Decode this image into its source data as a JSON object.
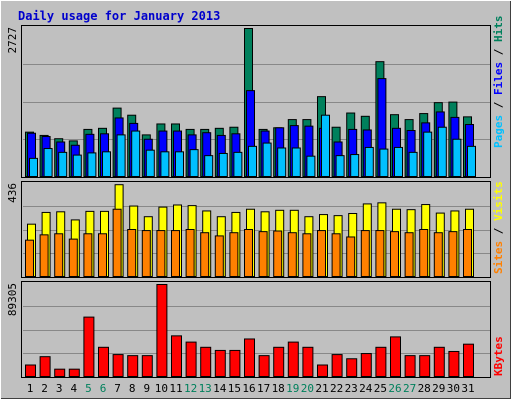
{
  "colors": {
    "background": "#c0c0c0",
    "title": "#0000cc",
    "hits": "#00805c",
    "files": "#0000ff",
    "pages": "#00c0ff",
    "visits": "#ffff00",
    "sites": "#ff8000",
    "kbytes": "#ff0000",
    "grid": "#888888"
  },
  "chart_data": [
    {
      "type": "bar",
      "title": "Daily usage for January 2013",
      "ylabel_max": "2727",
      "ylim": [
        0,
        2727
      ],
      "categories": [
        "1",
        "2",
        "3",
        "4",
        "5",
        "6",
        "7",
        "8",
        "9",
        "10",
        "11",
        "12",
        "13",
        "14",
        "15",
        "16",
        "17",
        "18",
        "19",
        "20",
        "21",
        "22",
        "23",
        "24",
        "25",
        "26",
        "27",
        "28",
        "29",
        "30",
        "31"
      ],
      "weekend_days": [
        "5",
        "6",
        "12",
        "13",
        "19",
        "20",
        "26",
        "27"
      ],
      "legend": [
        "Pages",
        "Files",
        "Hits"
      ],
      "series": [
        {
          "name": "Hits",
          "values": [
            830,
            770,
            710,
            670,
            880,
            900,
            1270,
            1140,
            780,
            980,
            980,
            880,
            880,
            900,
            920,
            2727,
            880,
            910,
            1060,
            1060,
            1480,
            920,
            1180,
            1120,
            2120,
            1150,
            1060,
            1170,
            1370,
            1380,
            1110
          ]
        },
        {
          "name": "Files",
          "values": [
            810,
            750,
            650,
            590,
            790,
            800,
            1090,
            990,
            700,
            850,
            850,
            780,
            820,
            770,
            800,
            1590,
            850,
            910,
            950,
            940,
            900,
            650,
            880,
            870,
            1810,
            900,
            860,
            1000,
            1200,
            1100,
            970
          ]
        },
        {
          "name": "Pages",
          "values": [
            350,
            530,
            460,
            410,
            450,
            470,
            780,
            850,
            500,
            470,
            470,
            510,
            400,
            440,
            460,
            570,
            630,
            540,
            540,
            390,
            1140,
            400,
            420,
            550,
            520,
            550,
            460,
            830,
            920,
            700,
            570
          ]
        }
      ]
    },
    {
      "type": "bar",
      "ylabel_max": "436",
      "ylim": [
        0,
        436
      ],
      "categories": [
        "1",
        "2",
        "3",
        "4",
        "5",
        "6",
        "7",
        "8",
        "9",
        "10",
        "11",
        "12",
        "13",
        "14",
        "15",
        "16",
        "17",
        "18",
        "19",
        "20",
        "21",
        "22",
        "23",
        "24",
        "25",
        "26",
        "27",
        "28",
        "29",
        "30",
        "31"
      ],
      "legend": [
        "Sites",
        "Visits"
      ],
      "series": [
        {
          "name": "Visits",
          "values": [
            250,
            305,
            308,
            270,
            310,
            310,
            435,
            335,
            285,
            330,
            340,
            337,
            312,
            285,
            305,
            320,
            308,
            315,
            315,
            285,
            295,
            290,
            300,
            345,
            350,
            320,
            318,
            342,
            302,
            312,
            320
          ]
        },
        {
          "name": "Sites",
          "values": [
            175,
            200,
            205,
            180,
            205,
            205,
            320,
            225,
            220,
            220,
            220,
            225,
            210,
            195,
            210,
            225,
            215,
            218,
            210,
            205,
            220,
            205,
            190,
            220,
            220,
            215,
            210,
            225,
            210,
            215,
            225
          ]
        }
      ]
    },
    {
      "type": "bar",
      "ylabel_max": "89305",
      "ylim": [
        0,
        89305
      ],
      "categories": [
        "1",
        "2",
        "3",
        "4",
        "5",
        "6",
        "7",
        "8",
        "9",
        "10",
        "11",
        "12",
        "13",
        "14",
        "15",
        "16",
        "17",
        "18",
        "19",
        "20",
        "21",
        "22",
        "23",
        "24",
        "25",
        "26",
        "27",
        "28",
        "29",
        "30",
        "31"
      ],
      "legend": [
        "KBytes"
      ],
      "series": [
        {
          "name": "KBytes",
          "values": [
            12000,
            20000,
            8000,
            8000,
            58000,
            29000,
            22000,
            21000,
            21000,
            89305,
            40000,
            34000,
            29000,
            26000,
            26000,
            37000,
            21000,
            29000,
            34000,
            29000,
            12000,
            22000,
            18000,
            23000,
            29000,
            39000,
            21000,
            21000,
            29000,
            25000,
            32000
          ]
        }
      ]
    }
  ]
}
